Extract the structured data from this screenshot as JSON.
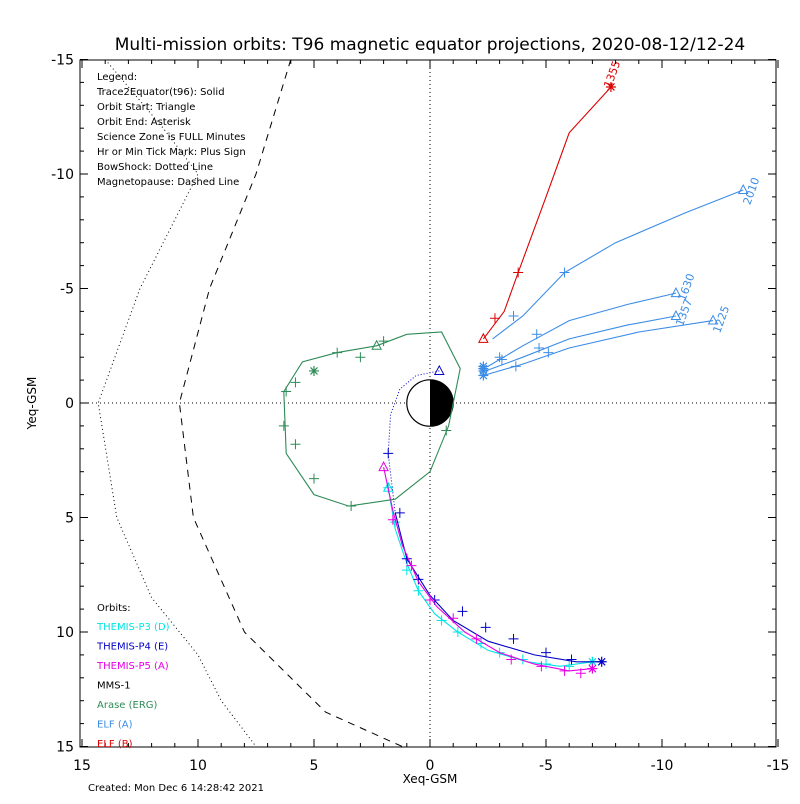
{
  "chart_data": {
    "type": "line",
    "title": "Multi-mission orbits: T96 magnetic equator projections, 2020-08-12/12-24",
    "xlabel": "Xeq-GSM",
    "ylabel": "Yeq-GSM",
    "xlim": [
      15,
      -15
    ],
    "ylim": [
      15,
      -15
    ],
    "x_ticks": [
      "15",
      "10",
      "5",
      "0",
      "-5",
      "-10",
      "-15"
    ],
    "y_ticks": [
      "-15",
      "-10",
      "-5",
      "0",
      "5",
      "10",
      "15"
    ],
    "created": "Created: Mon Dec  6 14:28:42 2021",
    "legend_lines": [
      "Legend:",
      "Trace2Equator(t96): Solid",
      "Orbit Start: Triangle",
      "Orbit End: Asterisk",
      "Science Zone is FULL Minutes",
      "Hr or Min Tick Mark: Plus Sign",
      "BowShock: Dotted Line",
      "Magnetopause: Dashed Line"
    ],
    "orbits_title": "Orbits:",
    "orbits_legend": [
      {
        "label": "THEMIS-P3 (D)",
        "color": "#00e5e5"
      },
      {
        "label": "THEMIS-P4 (E)",
        "color": "#0000c8"
      },
      {
        "label": "THEMIS-P5 (A)",
        "color": "#e600e6"
      },
      {
        "label": "MMS-1",
        "color": "#000000"
      },
      {
        "label": "Arase (ERG)",
        "color": "#2e8b57"
      },
      {
        "label": "ELF (A)",
        "color": "#3c8ce6"
      },
      {
        "label": "ELF (B)",
        "color": "#dc0000"
      }
    ],
    "bow_shock": [
      [
        14,
        -15
      ],
      [
        11.5,
        -12
      ],
      [
        10,
        -10
      ],
      [
        12.5,
        -5
      ],
      [
        14.3,
        0
      ],
      [
        13.5,
        5
      ],
      [
        12,
        8.5
      ],
      [
        10,
        11
      ],
      [
        9,
        13
      ],
      [
        7.5,
        15
      ]
    ],
    "magnetopause": [
      [
        6,
        -15
      ],
      [
        7.5,
        -10
      ],
      [
        9.5,
        -5
      ],
      [
        10.8,
        0
      ],
      [
        10.2,
        5
      ],
      [
        8,
        10
      ],
      [
        4.5,
        13.5
      ],
      [
        1.2,
        15
      ]
    ],
    "series": [
      {
        "name": "THEMIS-P3 (D)",
        "color": "#00e5e5",
        "dotted_to": 0,
        "points": [
          [
            1.8,
            3.7
          ],
          [
            1.5,
            5.5
          ],
          [
            1.0,
            7.0
          ],
          [
            0.5,
            8.2
          ],
          [
            -0.2,
            9.2
          ],
          [
            -1.2,
            10.0
          ],
          [
            -2.5,
            10.8
          ],
          [
            -4.2,
            11.3
          ],
          [
            -5.6,
            11.5
          ],
          [
            -7,
            11.3
          ]
        ],
        "ticks": [
          [
            1.8,
            3.7
          ],
          [
            1.5,
            5.2
          ],
          [
            1.0,
            7.3
          ],
          [
            0.5,
            8.2
          ],
          [
            -0.5,
            9.5
          ],
          [
            -1.2,
            10.0
          ],
          [
            -2.2,
            10.5
          ],
          [
            -3.0,
            10.9
          ],
          [
            -4.0,
            11.2
          ],
          [
            -5.0,
            11.4
          ],
          [
            -6.0,
            11.5
          ]
        ],
        "start": [
          1.8,
          3.7
        ],
        "end": [
          -7,
          11.3
        ]
      },
      {
        "name": "THEMIS-P4 (E)",
        "color": "#0000c8",
        "dotted_to": 6,
        "points": [
          [
            -0.4,
            -1.4
          ],
          [
            0.6,
            -1.2
          ],
          [
            1.3,
            -0.6
          ],
          [
            1.7,
            0.5
          ],
          [
            1.8,
            2.2
          ],
          [
            1.5,
            4.8
          ],
          [
            1.0,
            6.8
          ],
          [
            0.0,
            8.4
          ],
          [
            -1.0,
            9.5
          ],
          [
            -2.5,
            10.4
          ],
          [
            -4.5,
            11.0
          ],
          [
            -6.3,
            11.3
          ],
          [
            -7.4,
            11.3
          ]
        ],
        "ticks": [
          [
            1.8,
            2.2
          ],
          [
            1.3,
            4.8
          ],
          [
            1.0,
            6.8
          ],
          [
            0.5,
            7.7
          ],
          [
            -0.2,
            8.6
          ],
          [
            -1.4,
            9.1
          ],
          [
            -2.4,
            9.8
          ],
          [
            -3.6,
            10.3
          ],
          [
            -5.0,
            10.9
          ],
          [
            -6.1,
            11.2
          ]
        ],
        "start": [
          -0.4,
          -1.4
        ],
        "end": [
          -7.4,
          11.3
        ]
      },
      {
        "name": "THEMIS-P5 (A)",
        "color": "#e600e6",
        "dotted_to": 0,
        "points": [
          [
            2.0,
            2.8
          ],
          [
            1.6,
            4.7
          ],
          [
            1.2,
            6.2
          ],
          [
            0.5,
            7.8
          ],
          [
            -0.3,
            8.9
          ],
          [
            -1.5,
            10.0
          ],
          [
            -3.0,
            10.9
          ],
          [
            -4.5,
            11.4
          ],
          [
            -6.0,
            11.7
          ],
          [
            -7.0,
            11.6
          ]
        ],
        "ticks": [
          [
            1.6,
            5.1
          ],
          [
            0.8,
            7.1
          ],
          [
            0.0,
            8.6
          ],
          [
            -1.0,
            9.4
          ],
          [
            -2.0,
            10.3
          ],
          [
            -3.5,
            11.2
          ],
          [
            -4.8,
            11.5
          ],
          [
            -5.8,
            11.7
          ],
          [
            -6.5,
            11.8
          ]
        ],
        "start": [
          2.0,
          2.8
        ],
        "end": [
          -7.0,
          11.6
        ]
      },
      {
        "name": "Arase (ERG)",
        "color": "#2e8b57",
        "dotted_to": 0,
        "closed": true,
        "points": [
          [
            2.3,
            -2.5
          ],
          [
            1.0,
            -3.0
          ],
          [
            -0.5,
            -3.1
          ],
          [
            -1.3,
            -1.5
          ],
          [
            -0.8,
            1.0
          ],
          [
            0.0,
            3.0
          ],
          [
            1.5,
            4.2
          ],
          [
            3.5,
            4.5
          ],
          [
            5.0,
            4.0
          ],
          [
            6.2,
            2.2
          ],
          [
            6.3,
            -0.5
          ],
          [
            5.5,
            -1.8
          ],
          [
            4.0,
            -2.2
          ],
          [
            2.3,
            -2.5
          ]
        ],
        "ticks": [
          [
            2.0,
            -2.7
          ],
          [
            3.0,
            -2.0
          ],
          [
            4.0,
            -2.2
          ],
          [
            5.0,
            -1.4
          ],
          [
            5.8,
            -0.9
          ],
          [
            6.2,
            -0.5
          ],
          [
            6.3,
            1.0
          ],
          [
            5.8,
            1.8
          ],
          [
            5.0,
            3.3
          ],
          [
            3.4,
            4.5
          ],
          [
            -0.7,
            1.2
          ]
        ],
        "start": [
          2.3,
          -2.5
        ],
        "end": [
          5.0,
          -1.4
        ]
      },
      {
        "name": "ELF (A) 2010",
        "color": "#3c8ce6",
        "dotted_to": 0,
        "points": [
          [
            -2.7,
            -2.8
          ],
          [
            -4.0,
            -3.8
          ],
          [
            -5.8,
            -5.7
          ],
          [
            -8.0,
            -7.0
          ],
          [
            -11.0,
            -8.3
          ],
          [
            -13.5,
            -9.3
          ]
        ],
        "ticks": [
          [
            -3.6,
            -3.8
          ],
          [
            -5.8,
            -5.7
          ]
        ],
        "start": [
          -13.5,
          -9.3
        ],
        "end": [
          -2.3,
          -1.5
        ]
      },
      {
        "name": "ELF (A) 1630",
        "color": "#3c8ce6",
        "dotted_to": 0,
        "points": [
          [
            -2.5,
            -1.6
          ],
          [
            -4.0,
            -2.5
          ],
          [
            -6.0,
            -3.6
          ],
          [
            -8.5,
            -4.3
          ],
          [
            -10.6,
            -4.8
          ]
        ],
        "ticks": [
          [
            -3.0,
            -2.0
          ],
          [
            -4.6,
            -3.0
          ]
        ],
        "start": [
          -10.6,
          -4.8
        ],
        "end": [
          -2.3,
          -1.6
        ]
      },
      {
        "name": "ELF (A) 1357",
        "color": "#3c8ce6",
        "dotted_to": 0,
        "points": [
          [
            -2.4,
            -1.4
          ],
          [
            -4.0,
            -2.0
          ],
          [
            -6.0,
            -2.8
          ],
          [
            -8.5,
            -3.4
          ],
          [
            -10.6,
            -3.8
          ]
        ],
        "ticks": [
          [
            -3.1,
            -1.9
          ],
          [
            -4.7,
            -2.4
          ]
        ],
        "start": [
          -10.6,
          -3.8
        ],
        "end": [
          -2.3,
          -1.4
        ]
      },
      {
        "name": "ELF (A) 1225",
        "color": "#3c8ce6",
        "dotted_to": 0,
        "points": [
          [
            -2.3,
            -1.2
          ],
          [
            -4.0,
            -1.7
          ],
          [
            -6.0,
            -2.4
          ],
          [
            -9.0,
            -3.1
          ],
          [
            -12.2,
            -3.6
          ]
        ],
        "ticks": [
          [
            -3.7,
            -1.6
          ],
          [
            -5.1,
            -2.2
          ]
        ],
        "start": [
          -12.2,
          -3.6
        ],
        "end": [
          -2.3,
          -1.2
        ]
      },
      {
        "name": "ELF (B) 1355",
        "color": "#dc0000",
        "dotted_to": 0,
        "points": [
          [
            -2.3,
            -2.8
          ],
          [
            -3.2,
            -4.0
          ],
          [
            -3.8,
            -5.7
          ],
          [
            -5.0,
            -9.0
          ],
          [
            -6.0,
            -11.8
          ],
          [
            -7.8,
            -13.8
          ]
        ],
        "ticks": [
          [
            -2.8,
            -3.7
          ],
          [
            -3.8,
            -5.7
          ]
        ],
        "start": [
          -2.3,
          -2.8
        ],
        "end": [
          -7.8,
          -13.8
        ]
      }
    ],
    "annotations": [
      {
        "text": "1355",
        "x": -8.0,
        "y": -14.3,
        "color": "#dc0000"
      },
      {
        "text": "2010",
        "x": -14.0,
        "y": -9.2,
        "color": "#3c8ce6"
      },
      {
        "text": "1630",
        "x": -11.2,
        "y": -5.0,
        "color": "#3c8ce6"
      },
      {
        "text": "1357",
        "x": -11.1,
        "y": -3.9,
        "color": "#3c8ce6"
      },
      {
        "text": "1225",
        "x": -12.7,
        "y": -3.6,
        "color": "#3c8ce6"
      }
    ]
  }
}
